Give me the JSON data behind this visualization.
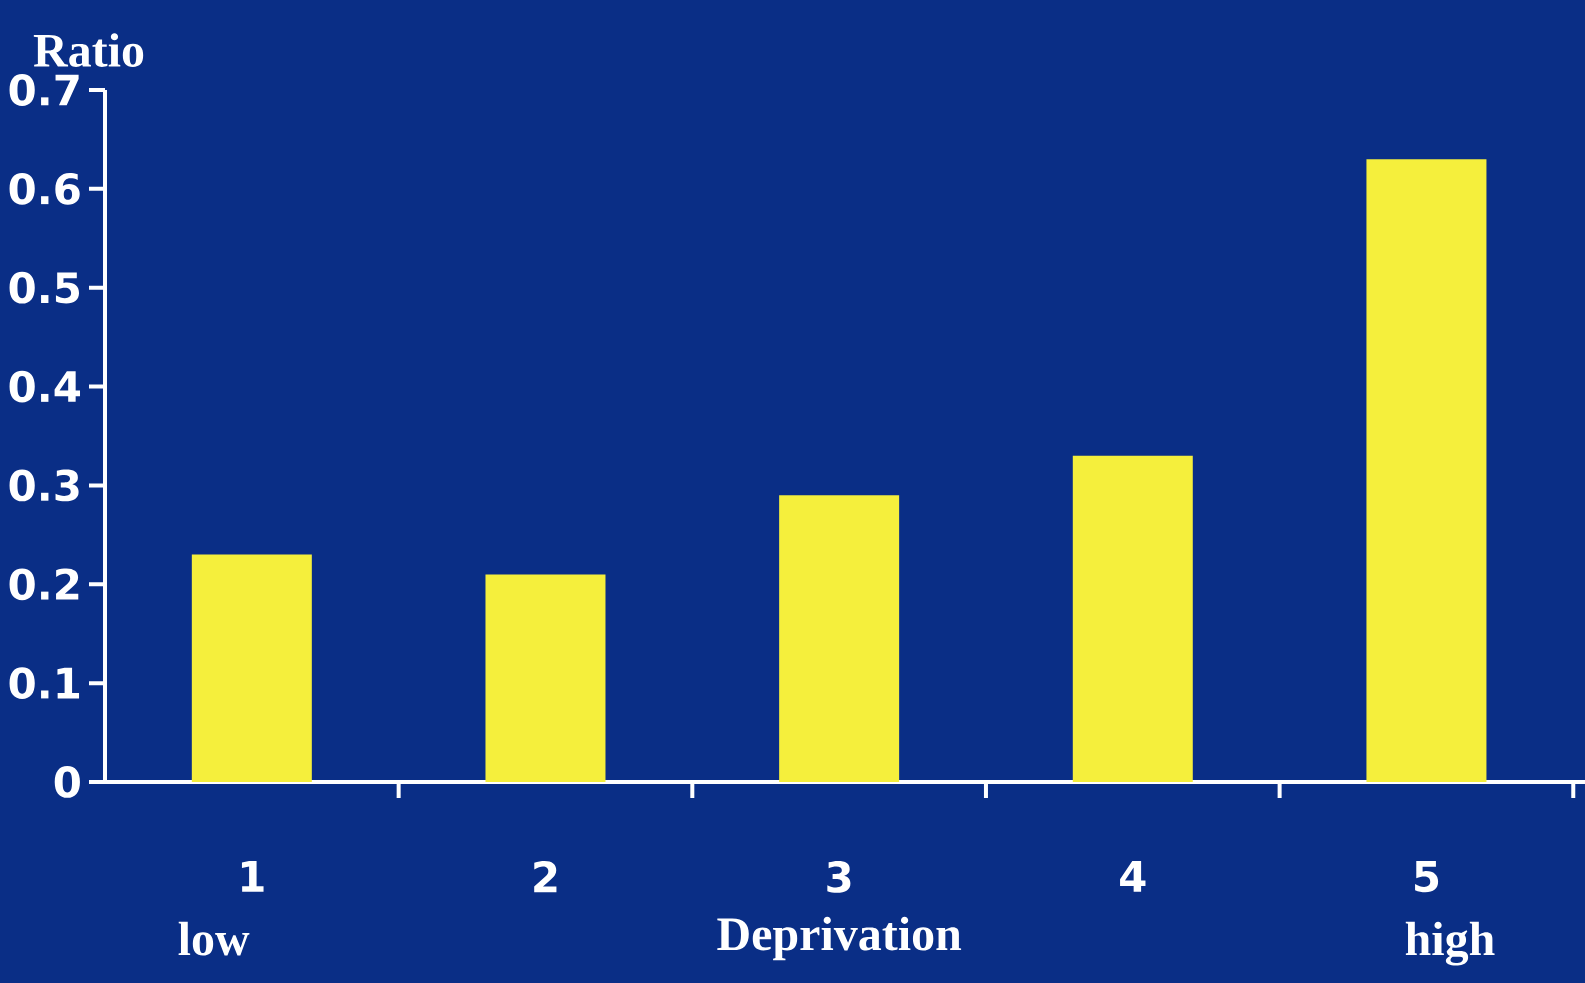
{
  "chart_data": {
    "type": "bar",
    "ylabel": "Ratio",
    "xlabel": "Deprivation",
    "categories": [
      "1",
      "2",
      "3",
      "4",
      "5"
    ],
    "values": [
      0.23,
      0.21,
      0.29,
      0.33,
      0.63
    ],
    "color": "#f5ef3c",
    "ylim": [
      0,
      0.7
    ],
    "yticks": [
      0,
      0.1,
      0.2,
      0.3,
      0.4,
      0.5,
      0.6,
      0.7
    ],
    "annotations": [
      "low",
      "high"
    ]
  }
}
